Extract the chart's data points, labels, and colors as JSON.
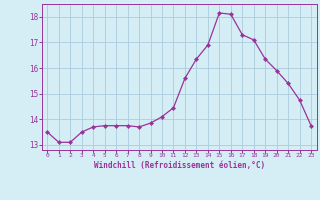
{
  "x": [
    0,
    1,
    2,
    3,
    4,
    5,
    6,
    7,
    8,
    9,
    10,
    11,
    12,
    13,
    14,
    15,
    16,
    17,
    18,
    19,
    20,
    21,
    22,
    23
  ],
  "y": [
    13.5,
    13.1,
    13.1,
    13.5,
    13.7,
    13.75,
    13.75,
    13.75,
    13.7,
    13.85,
    14.1,
    14.45,
    15.6,
    16.35,
    16.9,
    18.15,
    18.1,
    17.3,
    17.1,
    16.35,
    15.9,
    15.4,
    14.75,
    13.75
  ],
  "line_color": "#993399",
  "marker": "D",
  "marker_size": 2.2,
  "bg_color": "#d5eef5",
  "grid_color": "#aaccdd",
  "xlabel": "Windchill (Refroidissement éolien,°C)",
  "xlabel_color": "#993399",
  "tick_color": "#993399",
  "ylim": [
    12.8,
    18.5
  ],
  "xlim": [
    -0.5,
    23.5
  ],
  "yticks": [
    13,
    14,
    15,
    16,
    17,
    18
  ],
  "xticks": [
    0,
    1,
    2,
    3,
    4,
    5,
    6,
    7,
    8,
    9,
    10,
    11,
    12,
    13,
    14,
    15,
    16,
    17,
    18,
    19,
    20,
    21,
    22,
    23
  ],
  "figsize": [
    3.2,
    2.0
  ],
  "dpi": 100
}
